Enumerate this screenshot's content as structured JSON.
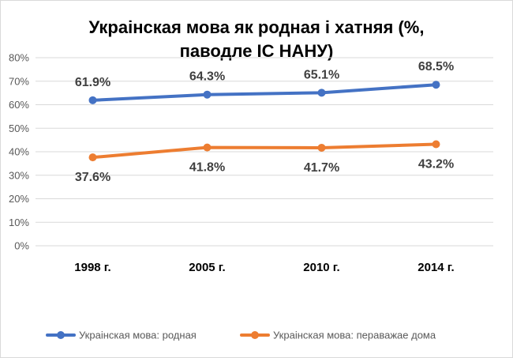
{
  "chart_data": {
    "type": "line",
    "title_lines": [
      "Украінская мова як родная і хатняя (%,",
      "паводле ІС НАНУ)"
    ],
    "categories": [
      "1998 г.",
      "2005 г.",
      "2010 г.",
      "2014 г."
    ],
    "y_ticks": [
      "0%",
      "10%",
      "20%",
      "30%",
      "40%",
      "50%",
      "60%",
      "70%",
      "80%"
    ],
    "ylim": [
      0,
      80
    ],
    "grid": true,
    "legend_position": "bottom",
    "series": [
      {
        "name": "Украінская мова: родная",
        "values": [
          61.9,
          64.3,
          65.1,
          68.5
        ],
        "labels": [
          "61.9%",
          "64.3%",
          "65.1%",
          "68.5%"
        ],
        "label_position": "above",
        "color": "#4472c4"
      },
      {
        "name": "Украінская мова: пераважае дома",
        "values": [
          37.6,
          41.8,
          41.7,
          43.2
        ],
        "labels": [
          "37.6%",
          "41.8%",
          "41.7%",
          "43.2%"
        ],
        "label_position": "below",
        "color": "#ed7d31"
      }
    ]
  }
}
